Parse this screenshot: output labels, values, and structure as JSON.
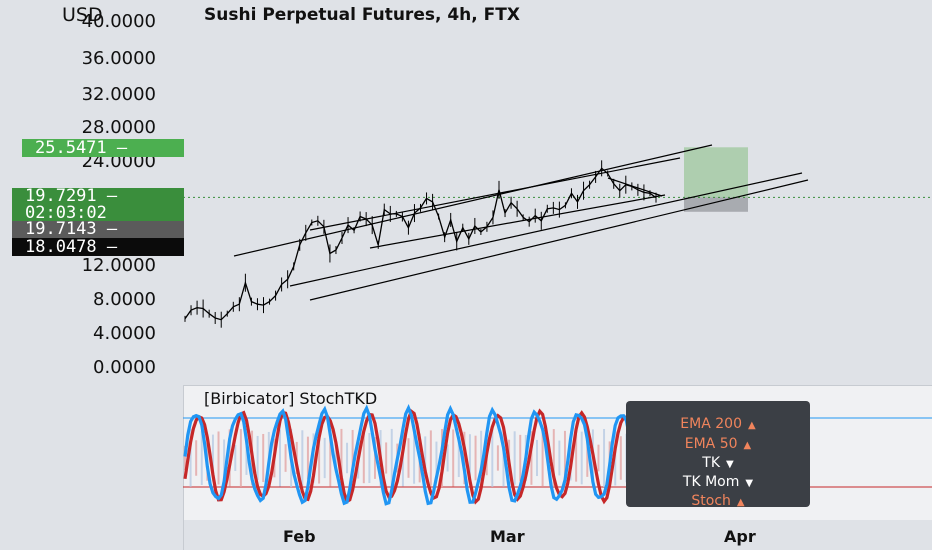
{
  "header": {
    "currency": "USD",
    "title": "Sushi Perpetual Futures, 4h, FTX"
  },
  "colors": {
    "background": "#dfe2e7",
    "candle": "#000000",
    "trendline": "#000000",
    "current_price_line": "#3a8e3c",
    "target_zone": "#a8cca8",
    "stop_zone": "#a2a5aa",
    "stoch_fast": "#2196f3",
    "stoch_slow": "#c62828",
    "upper_band": "#2196f3",
    "lower_band": "#c62828",
    "legend_bg": "#3b3f45",
    "legend_orange": "#f0845c"
  },
  "price_tags": {
    "highlight": "25.5471",
    "current": "19.7291",
    "countdown": "02:03:02",
    "gray": "19.7143",
    "black": "18.0478"
  },
  "indicator": {
    "title": "[Birbicator] StochTKD",
    "legend": [
      {
        "label": "EMA 200",
        "icon": "triangle-up-icon",
        "color": "#f0845c"
      },
      {
        "label": "EMA 50",
        "icon": "triangle-up-icon",
        "color": "#f0845c"
      },
      {
        "label": "TK",
        "icon": "triangle-down-icon",
        "color": "#ffffff"
      },
      {
        "label": "TK Mom",
        "icon": "triangle-down-icon",
        "color": "#ffffff"
      },
      {
        "label": "Stoch",
        "icon": "triangle-up-icon",
        "color": "#f0845c"
      }
    ]
  },
  "chart_data": {
    "type": "line",
    "title": "Sushi Perpetual Futures, 4h, FTX",
    "ylabel": "USD",
    "ylim": [
      0,
      40
    ],
    "y_ticks": [
      "40.0000",
      "36.0000",
      "32.0000",
      "28.0000",
      "24.0000",
      "12.0000",
      "8.0000",
      "4.0000",
      "0.0000"
    ],
    "x_ticks": [
      "Feb",
      "Mar",
      "Apr"
    ],
    "grid": false,
    "series": [
      {
        "x": [
          0,
          2,
          4,
          6,
          8,
          10,
          12,
          14,
          16,
          18,
          20,
          22,
          24,
          26,
          28,
          30,
          32,
          34,
          36,
          38,
          40,
          42,
          44,
          46,
          48,
          50,
          52,
          54,
          56,
          58,
          60,
          62,
          64,
          66,
          68,
          70,
          72,
          74,
          76,
          78,
          80,
          82,
          84,
          86,
          88,
          90,
          92,
          94,
          96,
          98,
          100,
          102,
          104,
          106,
          108,
          110,
          112,
          114,
          116,
          118,
          120,
          122,
          124,
          126,
          128,
          130,
          132,
          134,
          136,
          138,
          140,
          142,
          144,
          146,
          148,
          150,
          152,
          154,
          156
        ],
        "values": [
          5.6,
          6.6,
          6.9,
          6.8,
          6.2,
          5.7,
          5.5,
          6.2,
          7.0,
          7.3,
          9.8,
          7.6,
          7.3,
          7.2,
          7.6,
          8.3,
          9.6,
          10.2,
          11.7,
          14.2,
          15.6,
          16.8,
          17.0,
          16.3,
          13.2,
          13.6,
          15.0,
          16.5,
          15.9,
          17.5,
          17.2,
          16.5,
          14.2,
          18.3,
          17.8,
          17.8,
          17.5,
          16.2,
          17.9,
          18.5,
          19.6,
          19.2,
          17.5,
          15.1,
          17.1,
          14.6,
          16.2,
          14.9,
          16.4,
          15.7,
          16.3,
          17.4,
          20.6,
          17.9,
          19.1,
          18.4,
          17.4,
          16.9,
          17.6,
          17.0,
          18.4,
          18.5,
          18.3,
          18.8,
          20.2,
          19.2,
          20.5,
          21.2,
          22.1,
          23.1,
          22.5,
          21.3,
          20.5,
          21.2,
          21.0,
          20.6,
          20.3,
          20.2,
          19.7
        ]
      }
    ],
    "annotations": {
      "current_price": 19.7291,
      "target_zone": [
        19.7291,
        25.5471
      ],
      "stop_zone": [
        18.0478,
        19.7291
      ]
    }
  }
}
